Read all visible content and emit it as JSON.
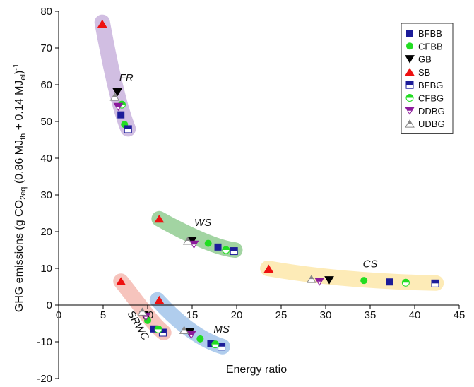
{
  "chart_data": {
    "type": "scatter",
    "x_label": "Energy ratio",
    "y_label": [
      {
        "text": "GHG emissions (g CO",
        "shift": "none"
      },
      {
        "text": "2eq",
        "shift": "sub"
      },
      {
        "text": " (0.86 MJ",
        "shift": "none"
      },
      {
        "text": "th",
        "shift": "sub"
      },
      {
        "text": " + 0.14 MJ",
        "shift": "none"
      },
      {
        "text": "el",
        "shift": "sub"
      },
      {
        "text": ")",
        "shift": "none"
      },
      {
        "text": "-1",
        "shift": "super"
      }
    ],
    "annotations": [
      "FR",
      "WS",
      "CS",
      "MS",
      "SRWC"
    ],
    "xlim": [
      0,
      45
    ],
    "xticks": [
      0,
      5,
      10,
      15,
      20,
      25,
      30,
      35,
      40,
      45
    ],
    "ylim": [
      -20,
      80
    ],
    "yticks": [
      -20,
      -10,
      0,
      10,
      20,
      30,
      40,
      50,
      60,
      70,
      80
    ],
    "legend": "top-right",
    "series": [
      {
        "name": "BFBB",
        "marker": "square",
        "color": "#1c1c99",
        "half": false,
        "x": [
          7.0,
          17.9,
          37.2,
          17.1,
          10.7
        ],
        "values": [
          51.8,
          15.8,
          6.3,
          -10.5,
          -6.5
        ]
      },
      {
        "name": "CFBB",
        "marker": "circle",
        "color": "#22dd22",
        "half": false,
        "x": [
          7.4,
          16.8,
          34.3,
          15.9,
          10.0
        ],
        "values": [
          49.2,
          16.8,
          6.7,
          -9.2,
          -4.2
        ]
      },
      {
        "name": "GB",
        "marker": "down",
        "color": "#000000",
        "half": false,
        "x": [
          6.6,
          15.0,
          30.4,
          14.7,
          9.6
        ],
        "values": [
          58.0,
          17.6,
          6.8,
          -7.4,
          -2.7
        ]
      },
      {
        "name": "SB",
        "marker": "up",
        "color": "#ee1111",
        "half": false,
        "x": [
          4.9,
          11.3,
          23.6,
          11.3,
          7.0
        ],
        "values": [
          76.6,
          23.5,
          9.9,
          1.4,
          6.5
        ]
      },
      {
        "name": "BFBG",
        "marker": "square",
        "color": "#1c1c99",
        "half": true,
        "x": [
          7.8,
          19.7,
          42.3,
          18.3,
          11.7
        ],
        "values": [
          47.9,
          14.7,
          5.9,
          -11.3,
          -7.5
        ]
      },
      {
        "name": "CFBG",
        "marker": "circle",
        "color": "#22dd22",
        "half": true,
        "x": [
          7.1,
          18.8,
          39.0,
          17.6,
          11.2
        ],
        "values": [
          54.6,
          15.0,
          6.1,
          -10.7,
          -6.6
        ]
      },
      {
        "name": "DDBG",
        "marker": "down",
        "color": "#8b1a9b",
        "half": true,
        "x": [
          6.7,
          15.2,
          29.3,
          14.9,
          9.8
        ],
        "values": [
          54.0,
          16.5,
          6.4,
          -8.1,
          -3.2
        ]
      },
      {
        "name": "UDBG",
        "marker": "up",
        "color": "#888888",
        "half": true,
        "x": [
          6.3,
          14.5,
          28.4,
          14.1,
          9.4
        ],
        "values": [
          56.7,
          17.5,
          7.1,
          -6.8,
          -1.8
        ]
      }
    ]
  }
}
